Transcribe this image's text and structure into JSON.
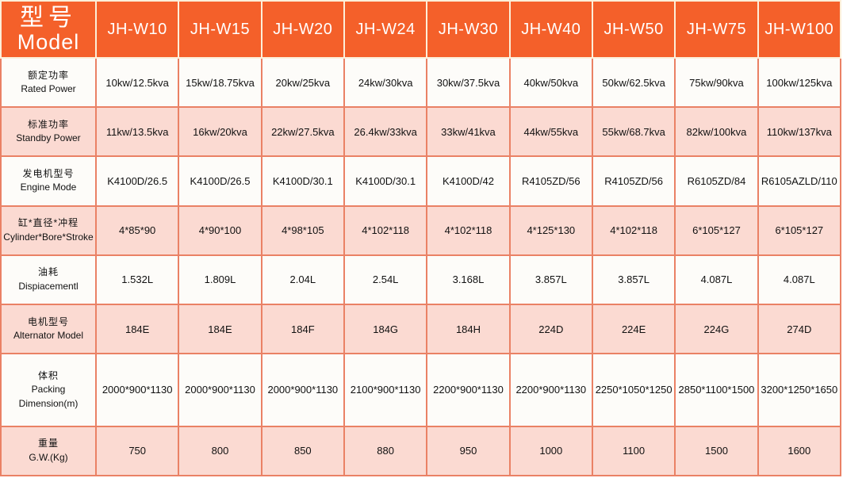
{
  "table": {
    "header": {
      "model_label_zh": "型号",
      "model_label_en": "Model",
      "columns": [
        "JH-W10",
        "JH-W15",
        "JH-W20",
        "JH-W24",
        "JH-W30",
        "JH-W40",
        "JH-W50",
        "JH-W75",
        "JH-W100"
      ]
    },
    "rows": [
      {
        "label_zh": "额定功率",
        "label_en": "Rated Power",
        "values": [
          "10kw/12.5kva",
          "15kw/18.75kva",
          "20kw/25kva",
          "24kw/30kva",
          "30kw/37.5kva",
          "40kw/50kva",
          "50kw/62.5kva",
          "75kw/90kva",
          "100kw/125kva"
        ]
      },
      {
        "label_zh": "标准功率",
        "label_en": "Standby Power",
        "values": [
          "11kw/13.5kva",
          "16kw/20kva",
          "22kw/27.5kva",
          "26.4kw/33kva",
          "33kw/41kva",
          "44kw/55kva",
          "55kw/68.7kva",
          "82kw/100kva",
          "110kw/137kva"
        ]
      },
      {
        "label_zh": "发电机型号",
        "label_en": "Engine Mode",
        "values": [
          "K4100D/26.5",
          "K4100D/26.5",
          "K4100D/30.1",
          "K4100D/30.1",
          "K4100D/42",
          "R4105ZD/56",
          "R4105ZD/56",
          "R6105ZD/84",
          "R6105AZLD/110"
        ]
      },
      {
        "label_zh": "缸*直径*冲程",
        "label_en": "Cylinder*Bore*Stroke",
        "values": [
          "4*85*90",
          "4*90*100",
          "4*98*105",
          "4*102*118",
          "4*102*118",
          "4*125*130",
          "4*102*118",
          "6*105*127",
          "6*105*127"
        ]
      },
      {
        "label_zh": "油耗",
        "label_en": "Dispiacementl",
        "values": [
          "1.532L",
          "1.809L",
          "2.04L",
          "2.54L",
          "3.168L",
          "3.857L",
          "3.857L",
          "4.087L",
          "4.087L"
        ]
      },
      {
        "label_zh": "电机型号",
        "label_en": "Alternator Model",
        "values": [
          "184E",
          "184E",
          "184F",
          "184G",
          "184H",
          "224D",
          "224E",
          "224G",
          "274D"
        ]
      },
      {
        "label_zh": "体积",
        "label_en": "Packing Dimension(m)",
        "values": [
          "2000*900*1130",
          "2000*900*1130",
          "2000*900*1130",
          "2100*900*1130",
          "2200*900*1130",
          "2200*900*1130",
          "2250*1050*1250",
          "2850*1100*1500",
          "3200*1250*1650"
        ]
      },
      {
        "label_zh": "重量",
        "label_en": "G.W.(Kg)",
        "values": [
          "750",
          "800",
          "850",
          "880",
          "950",
          "1000",
          "1100",
          "1500",
          "1600"
        ]
      }
    ],
    "colors": {
      "header_bg": "#F4602A",
      "header_text": "#FFFFFF",
      "header_divider": "#FCEFD9",
      "row_white": "#FDFCF9",
      "row_pink": "#FBDAD2",
      "border": "#EA8165",
      "body_text": "#111111"
    }
  }
}
